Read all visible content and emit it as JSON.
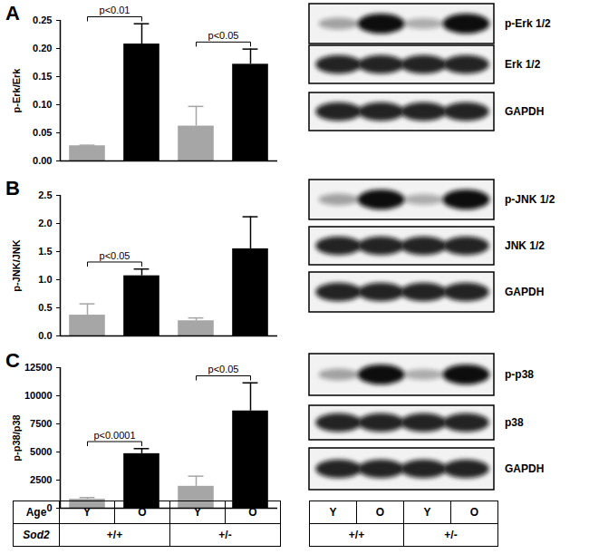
{
  "chart_data": [
    {
      "type": "bar",
      "title": "A",
      "y_label": "p-Erk/Erk",
      "categories": [
        "Y",
        "O",
        "Y",
        "O"
      ],
      "values": [
        0.027,
        0.208,
        0.062,
        0.172
      ],
      "errors": [
        0.001,
        0.036,
        0.035,
        0.027
      ],
      "colors": [
        "#a6a6a6",
        "#000000",
        "#a6a6a6",
        "#000000"
      ],
      "ylim": [
        0,
        0.25
      ],
      "yticks": [
        {
          "value": 0,
          "label": "0.00"
        },
        {
          "value": 0.05,
          "label": "0.05"
        },
        {
          "value": 0.1,
          "label": "0.10"
        },
        {
          "value": 0.15,
          "label": "0.15"
        },
        {
          "value": 0.2,
          "label": "0.20"
        },
        {
          "value": 0.25,
          "label": "0.25"
        }
      ],
      "tick_labels": "y",
      "annotations": [
        {
          "text": "p<0.01",
          "bars": [
            0,
            1
          ]
        },
        {
          "text": "p<0.05",
          "bars": [
            2,
            3
          ]
        }
      ]
    },
    {
      "type": "bar",
      "title": "B",
      "y_label": "p-JNK/JNK",
      "categories": [
        "Y",
        "O",
        "Y",
        "O"
      ],
      "values": [
        0.37,
        1.07,
        0.27,
        1.55
      ],
      "errors": [
        0.2,
        0.12,
        0.05,
        0.57
      ],
      "colors": [
        "#a6a6a6",
        "#000000",
        "#a6a6a6",
        "#000000"
      ],
      "ylim": [
        0,
        2.5
      ],
      "yticks": [
        {
          "value": 0,
          "label": "0.0"
        },
        {
          "value": 0.5,
          "label": "0.5"
        },
        {
          "value": 1,
          "label": "1.0"
        },
        {
          "value": 1.5,
          "label": "1.5"
        },
        {
          "value": 2,
          "label": "2.0"
        },
        {
          "value": 2.5,
          "label": "2.5"
        }
      ],
      "tick_labels": "y",
      "annotations": [
        {
          "text": "p<0.05",
          "bars": [
            0,
            1
          ]
        }
      ]
    },
    {
      "type": "bar",
      "title": "C",
      "y_label": "p-p38/p38",
      "categories": [
        "Y",
        "O",
        "Y",
        "O"
      ],
      "values": [
        800,
        4850,
        1950,
        8650
      ],
      "errors": [
        150,
        450,
        900,
        2500
      ],
      "colors": [
        "#a6a6a6",
        "#000000",
        "#a6a6a6",
        "#000000"
      ],
      "ylim": [
        0,
        12500
      ],
      "yticks": [
        0,
        2500,
        5000,
        7500,
        10000,
        12500
      ],
      "tick_labels": "y",
      "annotations": [
        {
          "text": "p<0.0001",
          "bars": [
            0,
            1
          ]
        },
        {
          "text": "p<0.05",
          "bars": [
            2,
            3
          ]
        }
      ]
    }
  ],
  "blots": [
    {
      "panel": "A",
      "labels": [
        "p-Erk 1/2",
        "Erk 1/2",
        "GAPDH"
      ]
    },
    {
      "panel": "B",
      "labels": [
        "p-JNK 1/2",
        "JNK 1/2",
        "GAPDH"
      ]
    },
    {
      "panel": "C",
      "labels": [
        "p-p38",
        "p38",
        "GAPDH"
      ]
    }
  ],
  "table": {
    "rows": [
      {
        "label": "Age",
        "cells": [
          "Y",
          "O",
          "Y",
          "O"
        ]
      },
      {
        "label": "Sod2",
        "cells": [
          "+/+",
          "+/-"
        ]
      }
    ]
  },
  "blot_table": {
    "rows": [
      [
        "Y",
        "O",
        "Y",
        "O"
      ],
      [
        "+/+",
        "+/-"
      ]
    ]
  }
}
